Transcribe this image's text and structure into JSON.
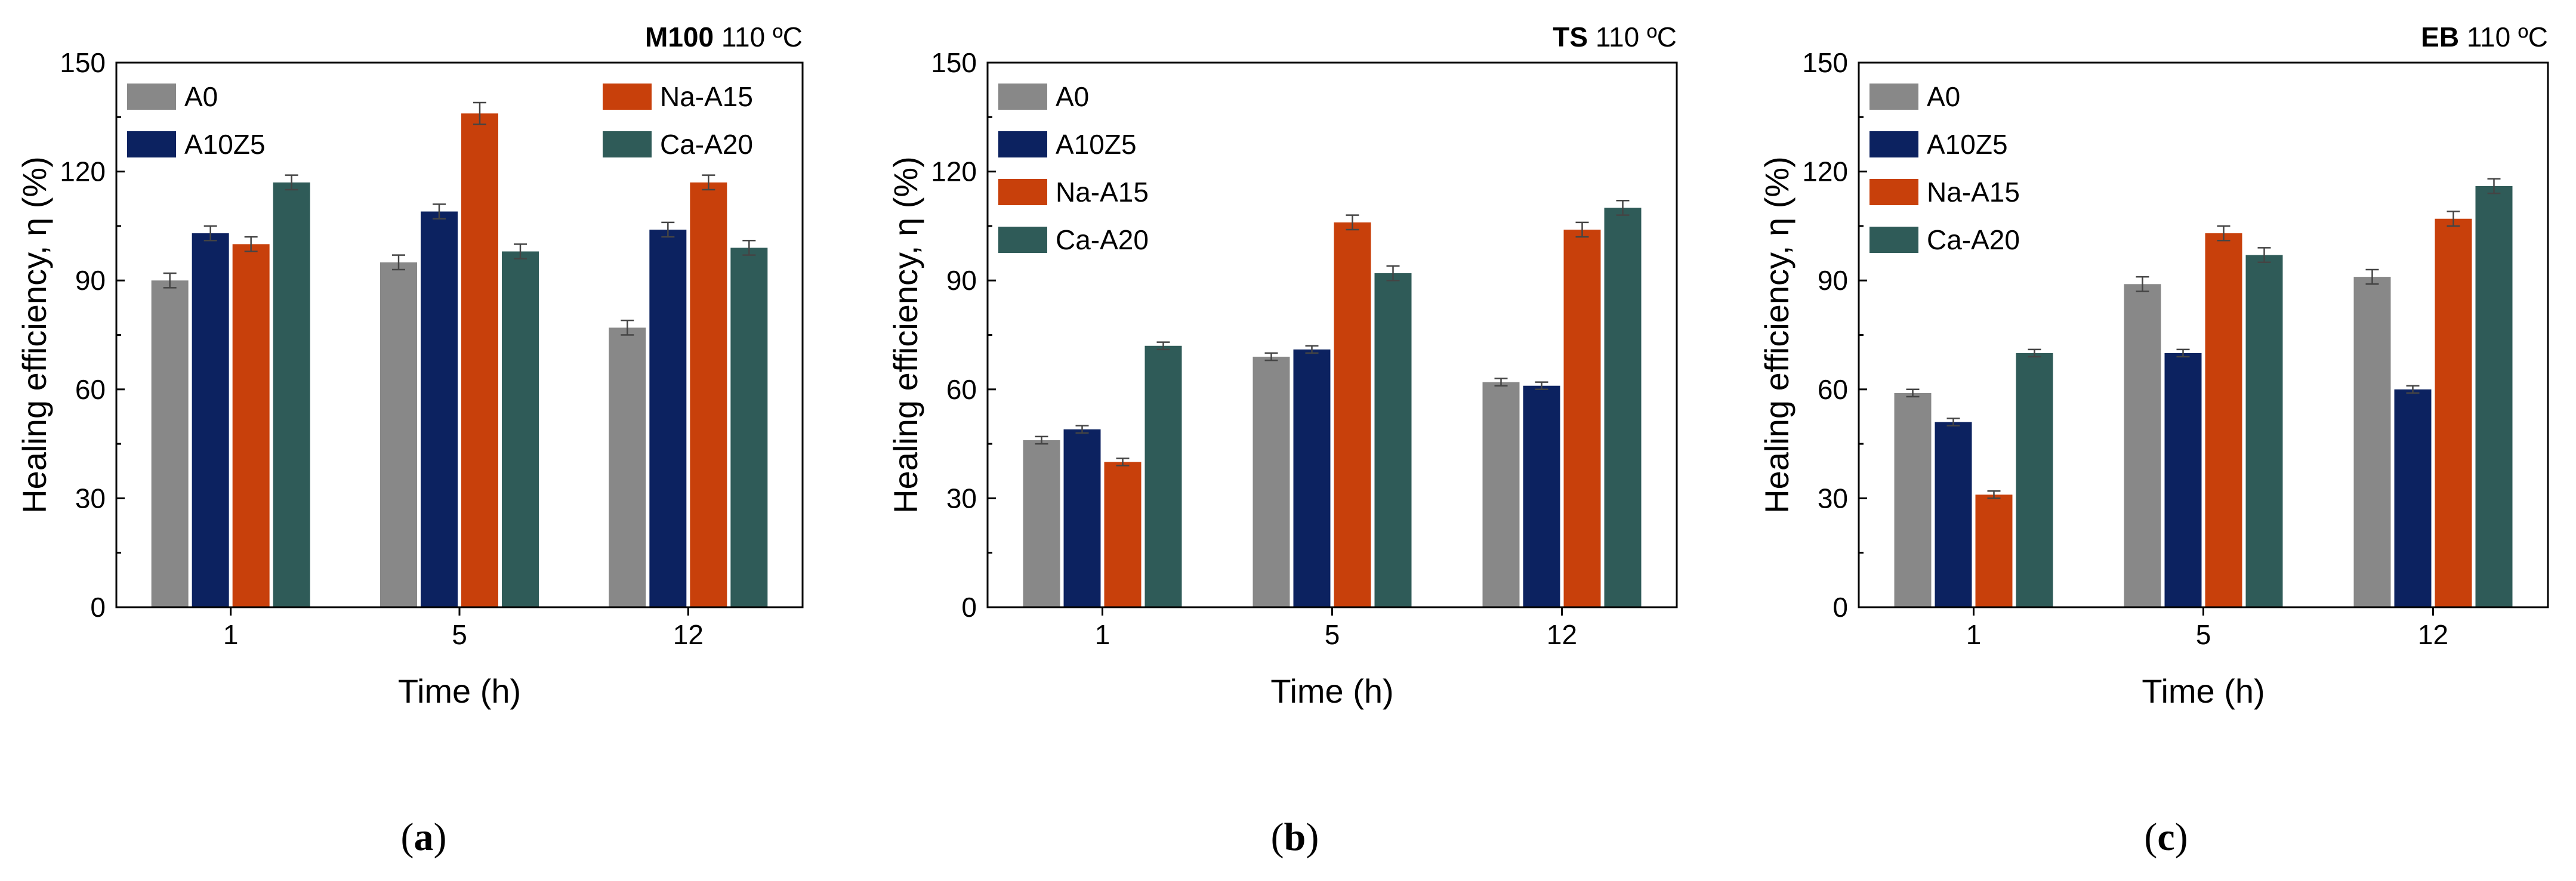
{
  "chart_data": [
    {
      "type": "bar",
      "panel_label": "a",
      "title_bold": "M100",
      "title_rest": "110 ºC",
      "xlabel": "Time (h)",
      "ylabel": "Healing efficiency, η (%)",
      "categories": [
        "1",
        "5",
        "12"
      ],
      "ylim": [
        0,
        150
      ],
      "yticks": [
        0,
        30,
        60,
        90,
        120,
        150
      ],
      "legend_layout": "two-column",
      "error_bars": true,
      "series": [
        {
          "name": "A0",
          "color": "#888888",
          "values": [
            90,
            95,
            77
          ],
          "errors": [
            2,
            2,
            2
          ]
        },
        {
          "name": "A10Z5",
          "color": "#0c2260",
          "values": [
            103,
            109,
            104
          ],
          "errors": [
            2,
            2,
            2
          ]
        },
        {
          "name": "Na-A15",
          "color": "#c8400b",
          "values": [
            100,
            136,
            117
          ],
          "errors": [
            2,
            3,
            2
          ]
        },
        {
          "name": "Ca-A20",
          "color": "#2f5b58",
          "values": [
            117,
            98,
            99
          ],
          "errors": [
            2,
            2,
            2
          ]
        }
      ]
    },
    {
      "type": "bar",
      "panel_label": "b",
      "title_bold": "TS",
      "title_rest": "110 ºC",
      "xlabel": "Time (h)",
      "ylabel": "Healing efficiency, η (%)",
      "categories": [
        "1",
        "5",
        "12"
      ],
      "ylim": [
        0,
        150
      ],
      "yticks": [
        0,
        30,
        60,
        90,
        120,
        150
      ],
      "legend_layout": "single-column",
      "error_bars": true,
      "series": [
        {
          "name": "A0",
          "color": "#888888",
          "values": [
            46,
            69,
            62
          ],
          "errors": [
            1,
            1,
            1
          ]
        },
        {
          "name": "A10Z5",
          "color": "#0c2260",
          "values": [
            49,
            71,
            61
          ],
          "errors": [
            1,
            1,
            1
          ]
        },
        {
          "name": "Na-A15",
          "color": "#c8400b",
          "values": [
            40,
            106,
            104
          ],
          "errors": [
            1,
            2,
            2
          ]
        },
        {
          "name": "Ca-A20",
          "color": "#2f5b58",
          "values": [
            72,
            92,
            110
          ],
          "errors": [
            1,
            2,
            2
          ]
        }
      ]
    },
    {
      "type": "bar",
      "panel_label": "c",
      "title_bold": "EB",
      "title_rest": "110 ºC",
      "xlabel": "Time (h)",
      "ylabel": "Healing efficiency, η (%)",
      "categories": [
        "1",
        "5",
        "12"
      ],
      "ylim": [
        0,
        150
      ],
      "yticks": [
        0,
        30,
        60,
        90,
        120,
        150
      ],
      "legend_layout": "single-column",
      "error_bars": true,
      "series": [
        {
          "name": "A0",
          "color": "#888888",
          "values": [
            59,
            89,
            91
          ],
          "errors": [
            1,
            2,
            2
          ]
        },
        {
          "name": "A10Z5",
          "color": "#0c2260",
          "values": [
            51,
            70,
            60
          ],
          "errors": [
            1,
            1,
            1
          ]
        },
        {
          "name": "Na-A15",
          "color": "#c8400b",
          "values": [
            31,
            103,
            107
          ],
          "errors": [
            1,
            2,
            2
          ]
        },
        {
          "name": "Ca-A20",
          "color": "#2f5b58",
          "values": [
            70,
            97,
            116
          ],
          "errors": [
            1,
            2,
            2
          ]
        }
      ]
    }
  ]
}
